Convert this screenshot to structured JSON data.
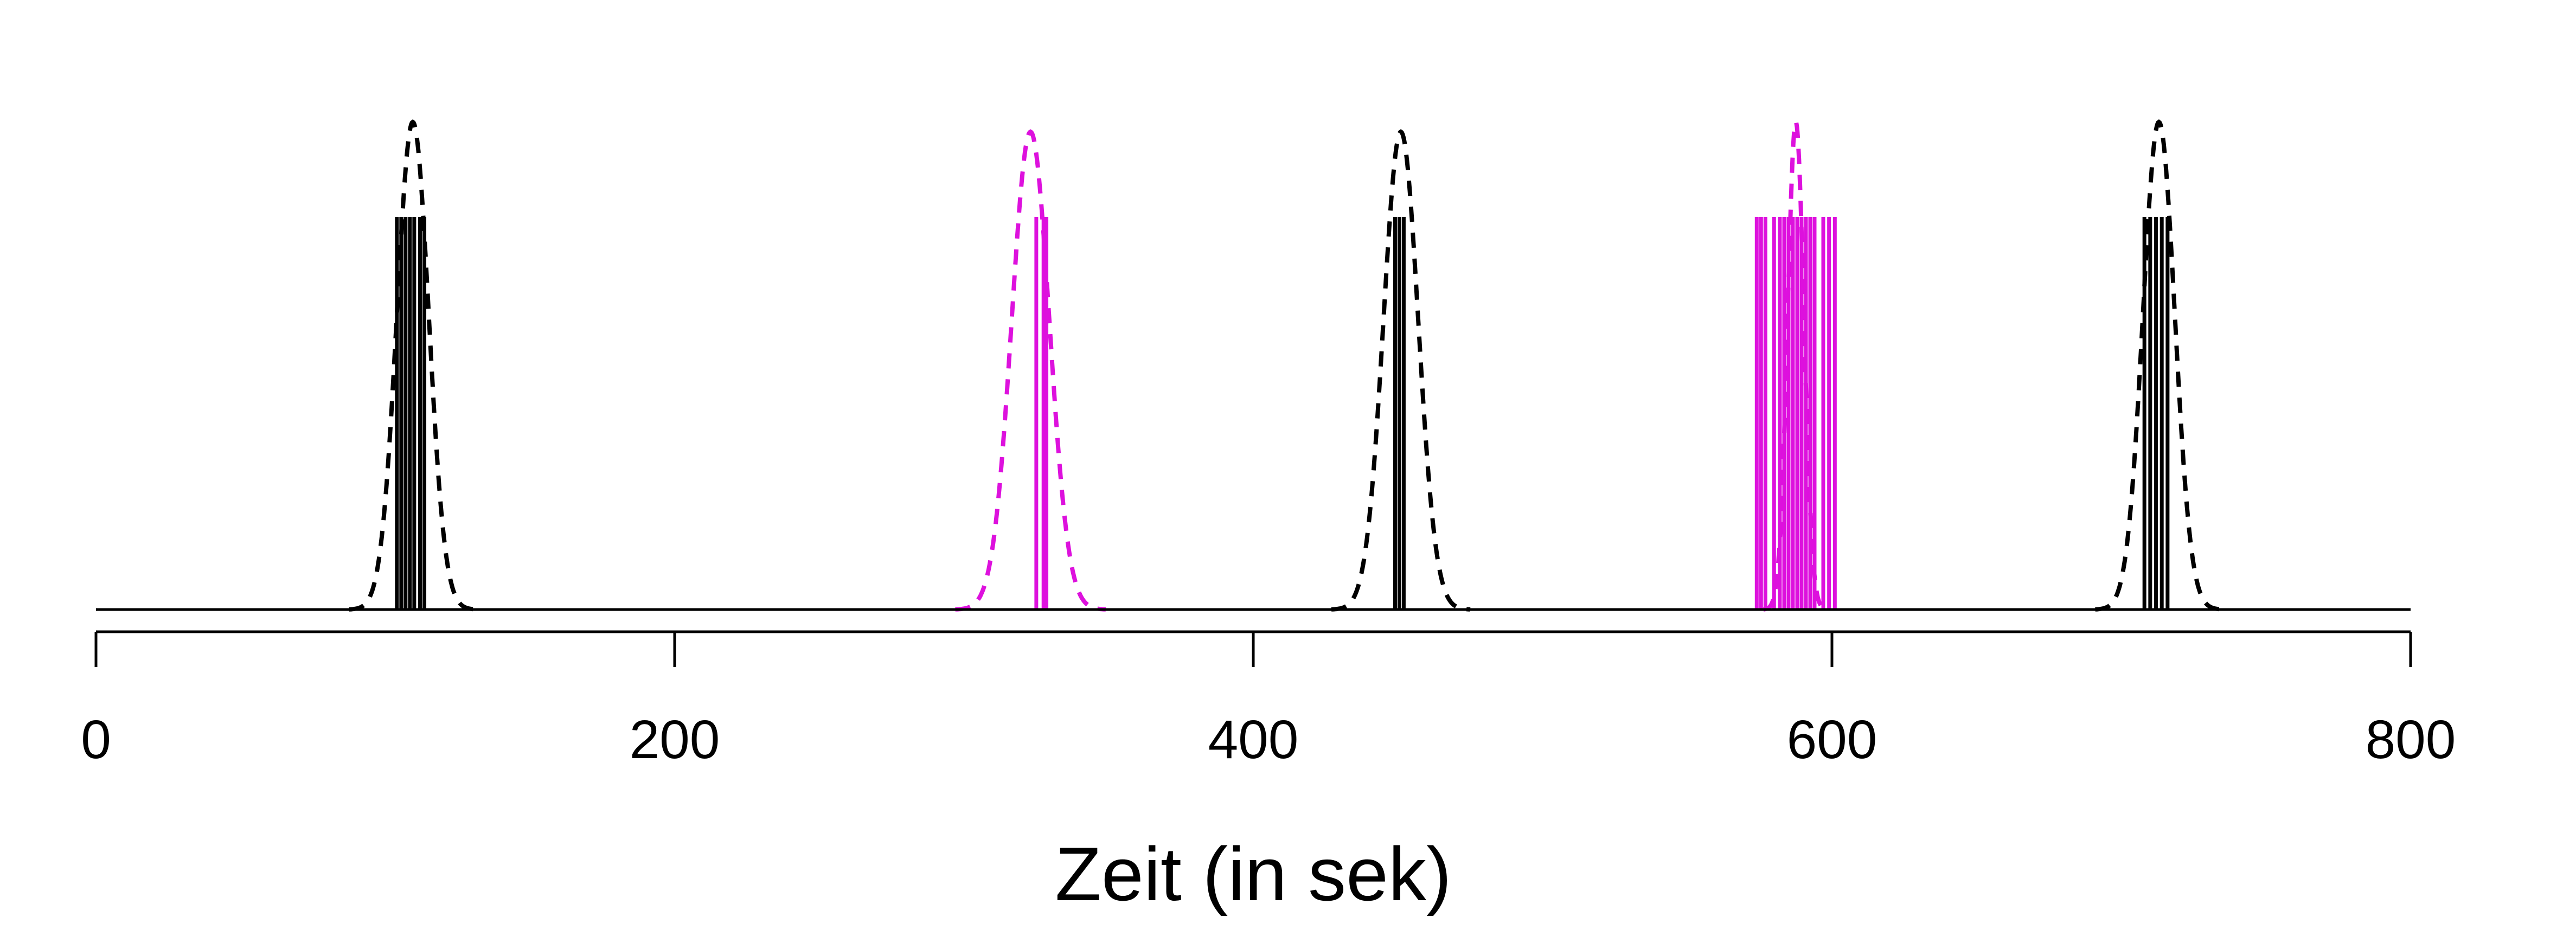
{
  "chart_data": {
    "type": "line",
    "title": "",
    "xlabel": "Zeit (in sek)",
    "ylabel": "",
    "xlim": [
      0,
      800
    ],
    "x_ticks": [
      0,
      200,
      400,
      600,
      800
    ],
    "x_tick_labels": [
      "0",
      "200",
      "400",
      "600",
      "800"
    ],
    "y_axis_visible": false,
    "grid": false,
    "legend": "none",
    "colors": {
      "black": "#000000",
      "magenta": "#dd11dd"
    },
    "events": [
      {
        "color": "black",
        "spikes": [
          104,
          105.5,
          107,
          108.5,
          110,
          112,
          113.5
        ],
        "density": {
          "mean": 109.5,
          "sd": 5.5,
          "peak": 1.0
        }
      },
      {
        "color": "magenta",
        "spikes": [
          325,
          327.5,
          328.5
        ],
        "density": {
          "mean": 323,
          "sd": 6.5,
          "peak": 0.98
        }
      },
      {
        "color": "black",
        "spikes": [
          449,
          450.5,
          452
        ],
        "density": {
          "mean": 451,
          "sd": 6.0,
          "peak": 0.98
        }
      },
      {
        "color": "magenta",
        "spikes": [
          574,
          575.5,
          577,
          580,
          582,
          583.5,
          585,
          586.5,
          588,
          589.5,
          591,
          592.5,
          594,
          597,
          599,
          601
        ],
        "density": {
          "mean": 587.5,
          "sd": 2.8,
          "peak": 1.0
        }
      },
      {
        "color": "black",
        "spikes": [
          708,
          710,
          712,
          714,
          716
        ],
        "density": {
          "mean": 713,
          "sd": 5.5,
          "peak": 1.0
        }
      }
    ]
  }
}
